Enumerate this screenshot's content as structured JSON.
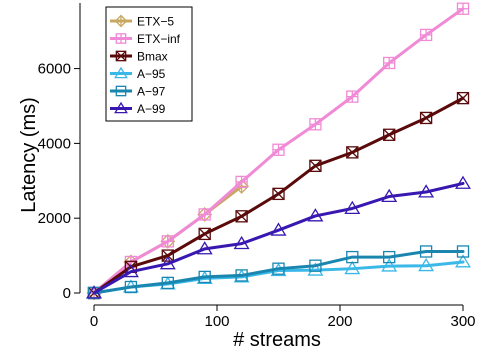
{
  "chart_data": {
    "type": "line",
    "title": "",
    "xlabel": "# streams",
    "ylabel": "Latency (ms)",
    "xlim": [
      0,
      300
    ],
    "ylim": [
      0,
      7700
    ],
    "xticks": [
      0,
      100,
      200,
      300
    ],
    "yticks": [
      0,
      2000,
      4000,
      6000
    ],
    "grid": false,
    "legend_position": "top-left",
    "series": [
      {
        "name": "ETX−5",
        "color": "#c8a860",
        "marker": "diamond",
        "x": [
          0,
          30,
          60,
          90,
          120
        ],
        "y": [
          0,
          830,
          1380,
          2100,
          2850
        ]
      },
      {
        "name": "ETX−inf",
        "color": "#f08ad6",
        "marker": "square-plus",
        "x": [
          0,
          30,
          60,
          90,
          120,
          150,
          180,
          210,
          240,
          270,
          300
        ],
        "y": [
          0,
          830,
          1380,
          2100,
          2970,
          3830,
          4510,
          5250,
          6150,
          6900,
          7600
        ]
      },
      {
        "name": "Bmax",
        "color": "#5a0a0a",
        "marker": "square-x",
        "x": [
          0,
          30,
          60,
          90,
          120,
          150,
          180,
          210,
          240,
          270,
          300
        ],
        "y": [
          0,
          700,
          1000,
          1580,
          2050,
          2650,
          3400,
          3760,
          4230,
          4680,
          5210
        ]
      },
      {
        "name": "A−95",
        "color": "#3ab8e8",
        "marker": "triangle",
        "x": [
          0,
          30,
          60,
          90,
          120,
          150,
          180,
          210,
          240,
          270,
          300
        ],
        "y": [
          0,
          160,
          240,
          390,
          430,
          600,
          610,
          650,
          720,
          730,
          830
        ]
      },
      {
        "name": "A−97",
        "color": "#1a86b0",
        "marker": "square",
        "x": [
          0,
          30,
          60,
          90,
          120,
          150,
          180,
          210,
          240,
          270,
          300
        ],
        "y": [
          0,
          160,
          270,
          430,
          470,
          650,
          730,
          960,
          960,
          1110,
          1110
        ]
      },
      {
        "name": "A−99",
        "color": "#3818b0",
        "marker": "triangle",
        "x": [
          0,
          30,
          60,
          90,
          120,
          150,
          180,
          210,
          240,
          270,
          300
        ],
        "y": [
          0,
          570,
          780,
          1180,
          1320,
          1680,
          2060,
          2260,
          2580,
          2700,
          2930
        ]
      }
    ]
  }
}
